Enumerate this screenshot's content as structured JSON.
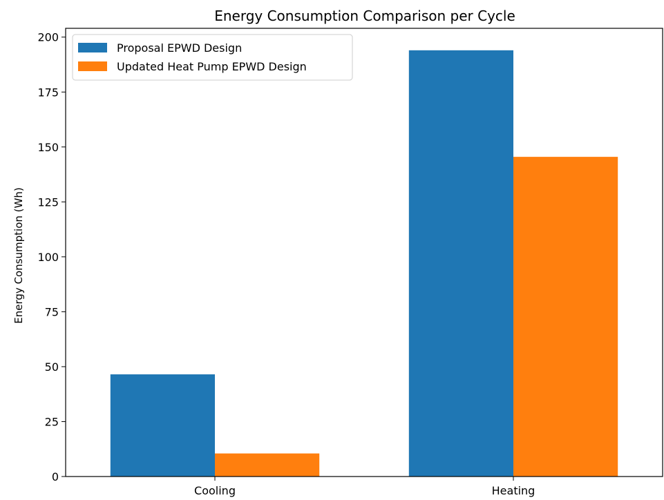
{
  "chart_data": {
    "type": "bar",
    "title": "Energy Consumption Comparison per Cycle",
    "xlabel": "",
    "ylabel": "Energy Consumption (Wh)",
    "categories": [
      "Cooling",
      "Heating"
    ],
    "series": [
      {
        "name": "Proposal EPWD Design",
        "color": "#1f77b4",
        "values": [
          46.5,
          194
        ]
      },
      {
        "name": "Updated Heat Pump EPWD Design",
        "color": "#ff7f0e",
        "values": [
          10.5,
          145.5
        ]
      }
    ],
    "ylim": [
      0,
      204
    ],
    "yticks": [
      0,
      25,
      50,
      75,
      100,
      125,
      150,
      175,
      200
    ],
    "ytick_labels": [
      "0",
      "25",
      "50",
      "75",
      "100",
      "125",
      "150",
      "175",
      "200"
    ],
    "legend_position": "upper left",
    "grid": false
  }
}
